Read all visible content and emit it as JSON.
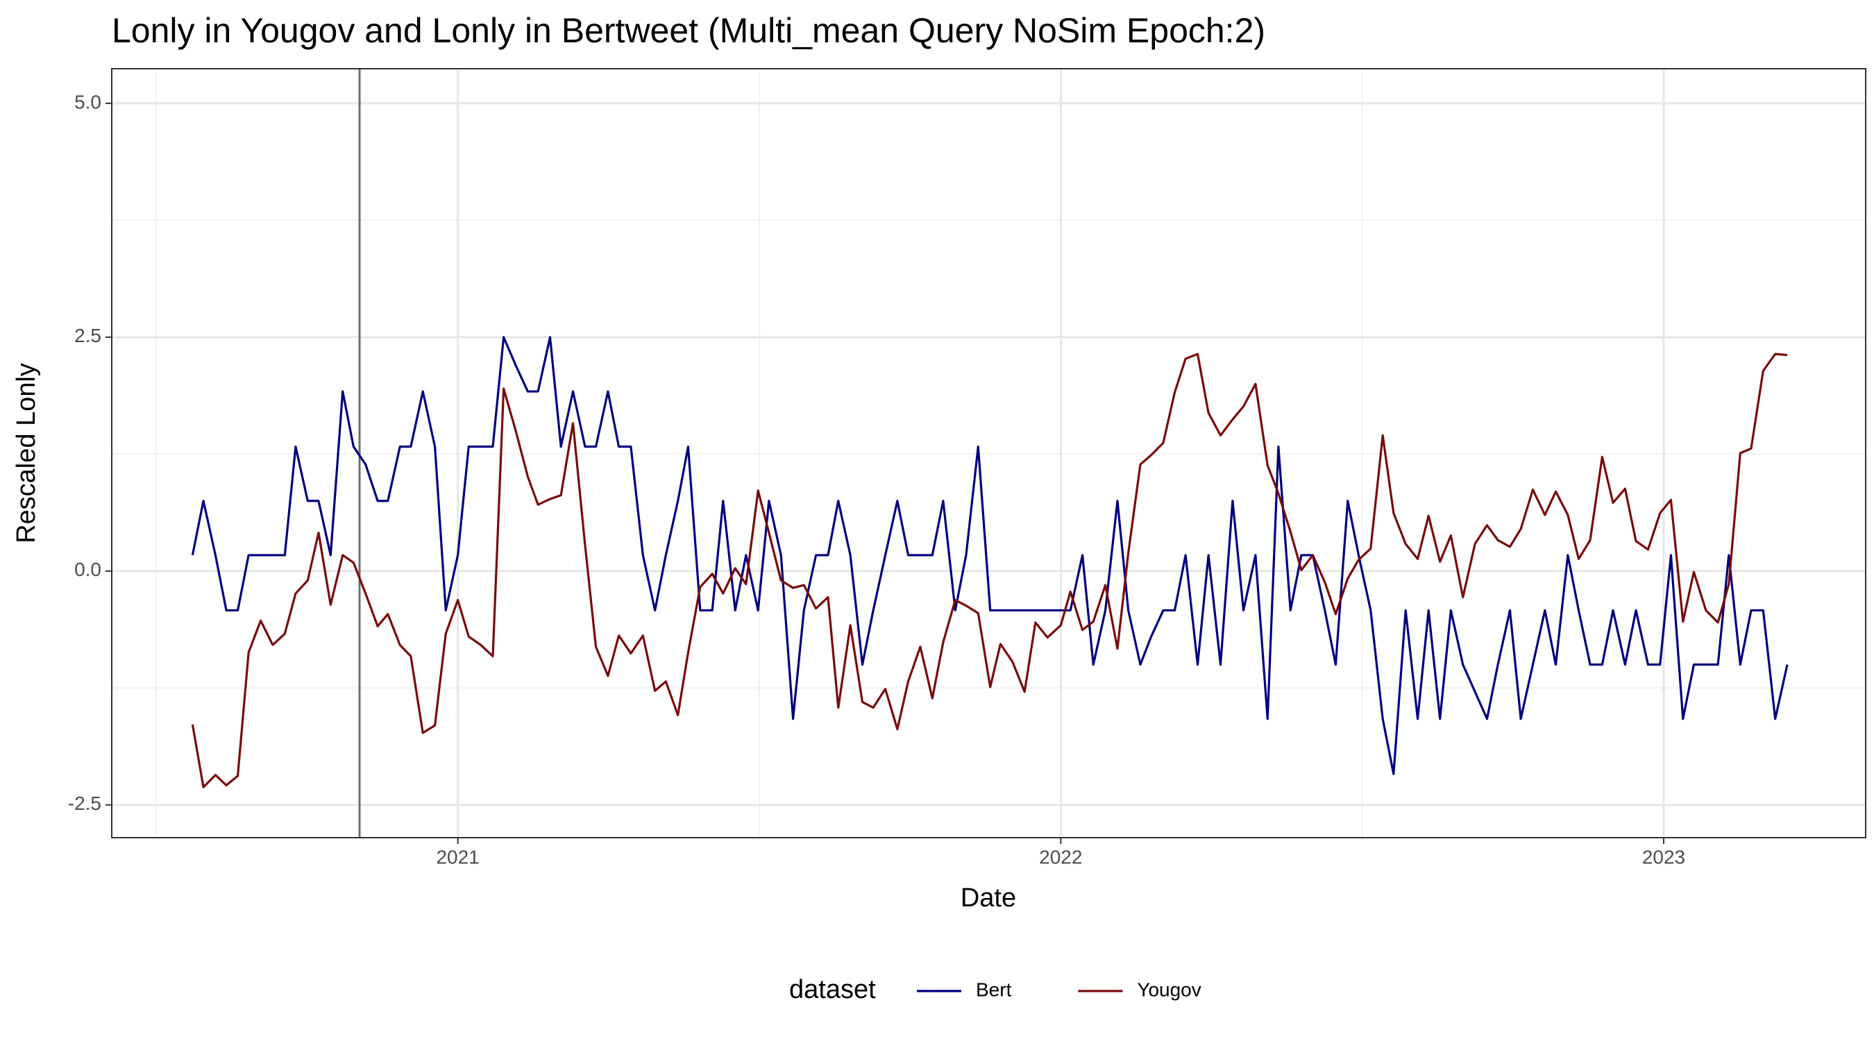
{
  "chart_data": {
    "type": "line",
    "title": "Lonly in Yougov and Lonly in Bertweet (Multi_mean Query NoSim Epoch:2)",
    "x_label": "Date",
    "y_label": "Rescaled  Lonly",
    "legend_title": "dataset",
    "legend_position": "bottom",
    "grid": true,
    "xlim": [
      2020.426,
      2023.335
    ],
    "ylim": [
      -2.85,
      5.37
    ],
    "xticks": [
      2021,
      2022,
      2023
    ],
    "xminor": [
      2020.5,
      2021.5,
      2022.5
    ],
    "yticks": [
      -2.5,
      {
        "value": 0,
        "label": "0.0"
      },
      2.5,
      {
        "value": 5,
        "label": "5.0"
      }
    ],
    "yminor": [
      -1.25,
      1.25,
      3.75
    ],
    "vline": 2020.837,
    "vline_color": "#6e6e6e",
    "x": [
      2020.56,
      2020.578,
      2020.598,
      2020.616,
      2020.635,
      2020.653,
      2020.673,
      2020.693,
      2020.713,
      2020.731,
      2020.751,
      2020.769,
      2020.789,
      2020.809,
      2020.827,
      2020.847,
      2020.867,
      2020.884,
      2020.904,
      2020.922,
      2020.942,
      2020.962,
      2020.98,
      2021.0,
      2021.018,
      2021.038,
      2021.058,
      2021.076,
      2021.096,
      2021.116,
      2021.133,
      2021.153,
      2021.171,
      2021.191,
      2021.211,
      2021.229,
      2021.249,
      2021.267,
      2021.287,
      2021.307,
      2021.327,
      2021.345,
      2021.365,
      2021.382,
      2021.402,
      2021.422,
      2021.44,
      2021.46,
      2021.478,
      2021.498,
      2021.516,
      2021.536,
      2021.556,
      2021.574,
      2021.594,
      2021.614,
      2021.631,
      2021.651,
      2021.671,
      2021.689,
      2021.709,
      2021.729,
      2021.747,
      2021.767,
      2021.787,
      2021.805,
      2021.825,
      2021.843,
      2021.863,
      2021.883,
      2021.9,
      2021.92,
      2021.94,
      2021.958,
      2021.978,
      2022.0,
      2022.016,
      2022.036,
      2022.054,
      2022.074,
      2022.094,
      2022.112,
      2022.132,
      2022.15,
      2022.17,
      2022.189,
      2022.207,
      2022.227,
      2022.245,
      2022.265,
      2022.285,
      2022.303,
      2022.323,
      2022.343,
      2022.361,
      2022.381,
      2022.399,
      2022.418,
      2022.438,
      2022.456,
      2022.476,
      2022.494,
      2022.514,
      2022.534,
      2022.552,
      2022.572,
      2022.592,
      2022.61,
      2022.629,
      2022.647,
      2022.667,
      2022.687,
      2022.707,
      2022.725,
      2022.745,
      2022.763,
      2022.783,
      2022.803,
      2022.821,
      2022.841,
      2022.859,
      2022.878,
      2022.898,
      2022.916,
      2022.936,
      2022.954,
      2022.974,
      2022.994,
      2023.012,
      2023.032,
      2023.05,
      2023.07,
      2023.09,
      2023.108,
      2023.127,
      2023.145,
      2023.165,
      2023.185,
      2023.205
    ],
    "series": [
      {
        "name": "Bert",
        "color": "#000080",
        "values": [
          0.17,
          0.75,
          0.17,
          -0.42,
          -0.42,
          0.17,
          0.17,
          0.17,
          0.17,
          1.33,
          0.75,
          0.75,
          0.17,
          1.92,
          1.33,
          1.14,
          0.75,
          0.75,
          1.33,
          1.33,
          1.92,
          1.33,
          -0.42,
          0.17,
          1.33,
          1.33,
          1.33,
          2.5,
          2.2,
          1.92,
          1.92,
          2.5,
          1.33,
          1.92,
          1.33,
          1.33,
          1.92,
          1.33,
          1.33,
          0.17,
          -0.42,
          0.17,
          0.75,
          1.33,
          -0.42,
          -0.42,
          0.75,
          -0.42,
          0.17,
          -0.42,
          0.75,
          0.17,
          -1.58,
          -0.42,
          0.17,
          0.17,
          0.75,
          0.17,
          -1.0,
          -0.42,
          0.17,
          0.75,
          0.17,
          0.17,
          0.17,
          0.75,
          -0.42,
          0.17,
          1.33,
          -0.42,
          -0.42,
          -0.42,
          -0.42,
          -0.42,
          -0.42,
          -0.42,
          -0.42,
          0.17,
          -1.0,
          -0.42,
          0.75,
          -0.42,
          -1.0,
          -0.7,
          -0.42,
          -0.42,
          0.17,
          -1.0,
          0.17,
          -1.0,
          0.75,
          -0.42,
          0.17,
          -1.58,
          1.33,
          -0.42,
          0.17,
          0.17,
          -0.42,
          -1.0,
          0.75,
          0.17,
          -0.42,
          -1.58,
          -2.17,
          -0.42,
          -1.58,
          -0.42,
          -1.58,
          -0.42,
          -1.0,
          -1.29,
          -1.58,
          -1.0,
          -0.42,
          -1.58,
          -1.0,
          -0.42,
          -1.0,
          0.17,
          -0.42,
          -1.0,
          -1.0,
          -0.42,
          -1.0,
          -0.42,
          -1.0,
          -1.0,
          0.17,
          -1.58,
          -1.0,
          -1.0,
          -1.0,
          0.17,
          -1.0,
          -0.42,
          -0.42,
          -1.58,
          -1.0
        ]
      },
      {
        "name": "Yougov",
        "color": "#7a0a0a",
        "values": [
          -1.64,
          -2.31,
          -2.18,
          -2.29,
          -2.19,
          -0.87,
          -0.53,
          -0.79,
          -0.67,
          -0.24,
          -0.1,
          0.41,
          -0.36,
          0.17,
          0.09,
          -0.24,
          -0.59,
          -0.46,
          -0.79,
          -0.91,
          -1.73,
          -1.65,
          -0.67,
          -0.31,
          -0.7,
          -0.79,
          -0.91,
          1.95,
          1.5,
          1.01,
          0.71,
          0.77,
          0.81,
          1.58,
          0.28,
          -0.81,
          -1.12,
          -0.69,
          -0.88,
          -0.69,
          -1.28,
          -1.18,
          -1.54,
          -0.87,
          -0.17,
          -0.03,
          -0.24,
          0.03,
          -0.14,
          0.86,
          0.41,
          -0.1,
          -0.18,
          -0.15,
          -0.4,
          -0.28,
          -1.46,
          -0.58,
          -1.4,
          -1.46,
          -1.26,
          -1.69,
          -1.18,
          -0.81,
          -1.36,
          -0.76,
          -0.31,
          -0.37,
          -0.45,
          -1.24,
          -0.78,
          -0.97,
          -1.29,
          -0.55,
          -0.71,
          -0.58,
          -0.22,
          -0.63,
          -0.54,
          -0.15,
          -0.83,
          0.19,
          1.14,
          1.24,
          1.37,
          1.91,
          2.27,
          2.32,
          1.69,
          1.45,
          1.62,
          1.76,
          2.0,
          1.13,
          0.83,
          0.42,
          0.01,
          0.17,
          -0.12,
          -0.46,
          -0.08,
          0.12,
          0.24,
          1.45,
          0.62,
          0.29,
          0.13,
          0.59,
          0.1,
          0.38,
          -0.28,
          0.29,
          0.49,
          0.33,
          0.26,
          0.45,
          0.87,
          0.6,
          0.85,
          0.6,
          0.13,
          0.33,
          1.22,
          0.73,
          0.88,
          0.32,
          0.23,
          0.62,
          0.76,
          -0.54,
          -0.01,
          -0.42,
          -0.55,
          -0.14,
          1.26,
          1.31,
          2.14,
          2.32,
          2.31
        ]
      }
    ]
  }
}
